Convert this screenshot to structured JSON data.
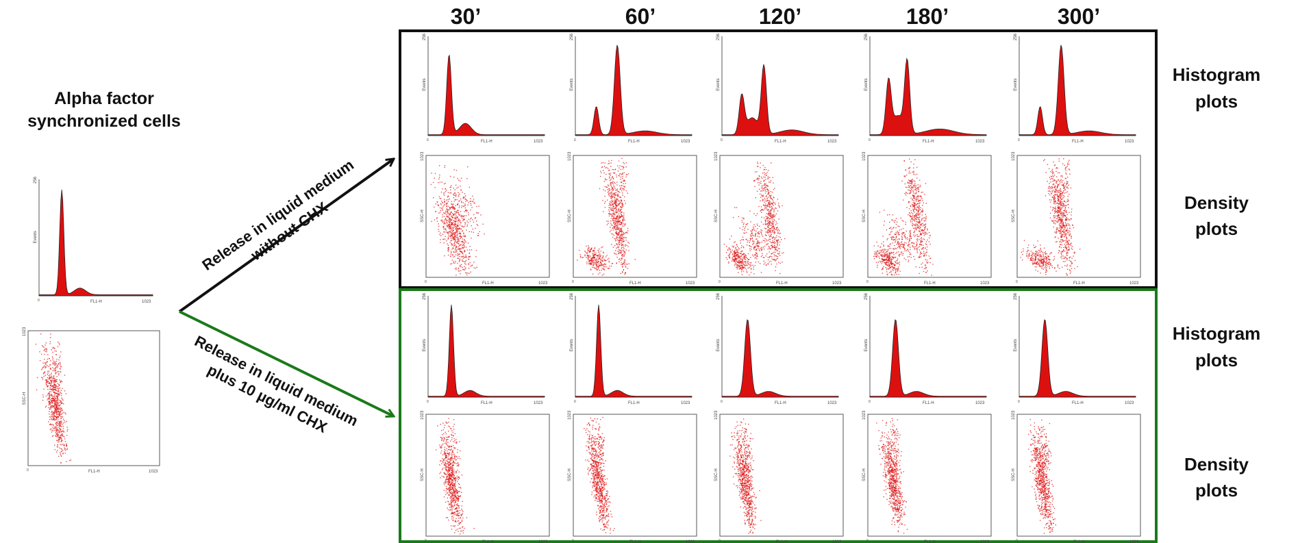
{
  "time_labels": [
    "30’",
    "60’",
    "120’",
    "180’",
    "300’"
  ],
  "left_title": {
    "line1": "Alpha factor",
    "line2": "synchronized cells"
  },
  "arrow_upper_text": {
    "line1": "Release in liquid medium",
    "line2": "without CHX"
  },
  "arrow_lower_text": {
    "line1": "Release in liquid medium",
    "line2": "plus 10 µg/ml CHX"
  },
  "row_labels": {
    "histogram": {
      "line1": "Histogram",
      "line2": "plots"
    },
    "density": {
      "line1": "Density",
      "line2": "plots"
    }
  },
  "plot_axis": {
    "hist_ylabel": "Events",
    "hist_ymax": "256",
    "dens_ylabel": "SSC-H",
    "dens_ymax": "1023",
    "xlabel": "FL1-H",
    "xmax": "1023",
    "zero": "0"
  },
  "colors": {
    "data": "#dd1010",
    "upper_box": "#111111",
    "lower_box": "#1a7a1a",
    "upper_arrow": "#111111",
    "lower_arrow": "#1a7a1a"
  },
  "panels": {
    "initial": {
      "hist_shape": "g1",
      "density_shape": "g1"
    },
    "without_chx": [
      {
        "time": "30’",
        "hist_shape": "g1-heavy",
        "density_shape": "g1-spread"
      },
      {
        "time": "60’",
        "hist_shape": "g2-dominant",
        "density_shape": "g2"
      },
      {
        "time": "120’",
        "hist_shape": "bimodal",
        "density_shape": "bimodal"
      },
      {
        "time": "180’",
        "hist_shape": "bimodal-g2",
        "density_shape": "bimodal"
      },
      {
        "time": "300’",
        "hist_shape": "g2-dominant",
        "density_shape": "g2"
      }
    ],
    "with_chx": [
      {
        "time": "30’",
        "hist_shape": "g1",
        "density_shape": "g1"
      },
      {
        "time": "60’",
        "hist_shape": "g1",
        "density_shape": "g1"
      },
      {
        "time": "120’",
        "hist_shape": "g1-broad",
        "density_shape": "g1"
      },
      {
        "time": "180’",
        "hist_shape": "g1-broad",
        "density_shape": "g1"
      },
      {
        "time": "300’",
        "hist_shape": "g1-broad",
        "density_shape": "g1"
      }
    ]
  }
}
